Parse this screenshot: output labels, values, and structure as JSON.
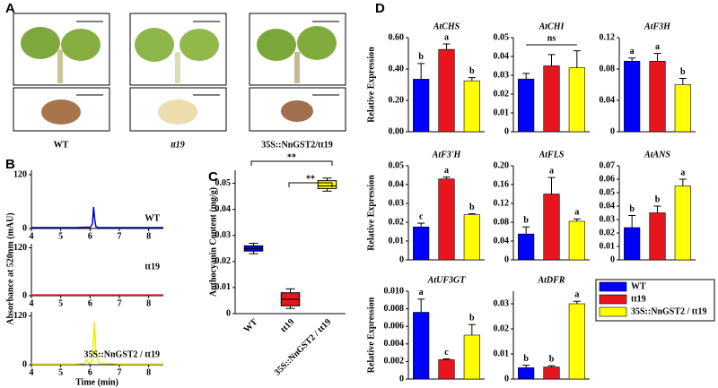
{
  "panels": [
    "A",
    "B",
    "C",
    "D"
  ],
  "photos": {
    "captions": [
      "WT",
      "tt19",
      "35S::NnGST2/tt19"
    ]
  },
  "legend": [
    {
      "name": "WT",
      "color": "#0000ff"
    },
    {
      "name": "tt19",
      "color": "#e8141e"
    },
    {
      "name": "35S::NnGST2 / tt19",
      "color": "#ffff00"
    }
  ],
  "chart_data": [
    {
      "type": "line",
      "ylabel": "Absorbance at 520nm (mAU)",
      "xlim": [
        4,
        8.5
      ],
      "ylim": [
        0,
        130
      ],
      "xticks": [
        4,
        5,
        6,
        7,
        8
      ],
      "yticks": [
        0,
        120
      ],
      "x": [
        4,
        5,
        5.5,
        5.9,
        6.0,
        6.08,
        6.12,
        6.16,
        6.2,
        6.3,
        7,
        8,
        8.5
      ],
      "series": [
        {
          "name": "WT",
          "color": "#0000cc",
          "values": [
            2,
            2,
            2,
            3,
            2,
            10,
            48,
            20,
            4,
            2,
            2,
            2,
            2
          ]
        }
      ]
    },
    {
      "type": "line",
      "xlim": [
        4,
        8.5
      ],
      "ylim": [
        0,
        130
      ],
      "xticks": [
        4,
        5,
        6,
        7,
        8
      ],
      "yticks": [
        0,
        120
      ],
      "x": [
        4,
        5,
        6,
        7,
        8,
        8.5
      ],
      "series": [
        {
          "name": "tt19",
          "color": "#e8141e",
          "values": [
            2,
            2,
            2,
            2,
            2,
            2
          ]
        }
      ]
    },
    {
      "type": "line",
      "xlabel": "Time (min)",
      "xlim": [
        4,
        8.5
      ],
      "ylim": [
        0,
        130
      ],
      "xticks": [
        4,
        5,
        6,
        7,
        8
      ],
      "yticks": [
        0,
        120
      ],
      "x": [
        4,
        5,
        5.5,
        5.8,
        5.88,
        5.95,
        6.05,
        6.1,
        6.15,
        6.2,
        6.3,
        7,
        8,
        8.5
      ],
      "series": [
        {
          "name": "35S::NnGST2 / tt19",
          "color": "#eeee00",
          "values": [
            2,
            2,
            2,
            3,
            12,
            3,
            5,
            40,
            105,
            30,
            4,
            2,
            2,
            2
          ]
        }
      ]
    },
    {
      "type": "box",
      "ylabel": "Anthocyanin Content (mg/g)",
      "ylim": [
        0,
        0.055
      ],
      "yticks": [
        0,
        0.01,
        0.02,
        0.03,
        0.04,
        0.05
      ],
      "categories": [
        "WT",
        "tt19",
        "35S::NnGST2 / tt19"
      ],
      "boxes": [
        {
          "min": 0.023,
          "q1": 0.024,
          "median": 0.025,
          "q3": 0.026,
          "max": 0.027,
          "color": "#0000ff"
        },
        {
          "min": 0.002,
          "q1": 0.003,
          "median": 0.0055,
          "q3": 0.008,
          "max": 0.0095,
          "color": "#e8141e"
        },
        {
          "min": 0.047,
          "q1": 0.048,
          "median": 0.049,
          "q3": 0.051,
          "max": 0.052,
          "color": "#ffff00"
        }
      ],
      "annotations": [
        "**",
        "**"
      ]
    },
    {
      "type": "bar",
      "title": "AtCHS",
      "ylabel": "Relative Expression",
      "ylim": [
        0,
        0.6
      ],
      "yticks": [
        {
          "value": 0,
          "label": "0.00"
        },
        {
          "value": 0.2,
          "label": "0.20"
        },
        {
          "value": 0.4,
          "label": "0.40"
        },
        {
          "value": 0.6,
          "label": "0.60"
        }
      ],
      "values": [
        0.335,
        0.525,
        0.325
      ],
      "errors": [
        0.1,
        0.035,
        0.02
      ],
      "letters": [
        "b",
        "a",
        "b"
      ]
    },
    {
      "type": "bar",
      "title": "AtCHI",
      "ylim": [
        0,
        0.05
      ],
      "yticks": [
        0,
        0.01,
        0.02,
        0.03,
        0.04,
        0.05
      ],
      "values": [
        0.028,
        0.035,
        0.034
      ],
      "errors": [
        0.003,
        0.006,
        0.009
      ],
      "annotation": "ns"
    },
    {
      "type": "bar",
      "title": "AtF3H",
      "ylim": [
        0,
        0.12
      ],
      "yticks": [
        0,
        0.04,
        0.08,
        0.12
      ],
      "values": [
        0.09,
        0.09,
        0.06
      ],
      "errors": [
        0.004,
        0.01,
        0.008
      ],
      "letters": [
        "a",
        "a",
        "b"
      ]
    },
    {
      "type": "bar",
      "title": "AtF3'H",
      "ylabel": "Relative Expression",
      "ylim": [
        0,
        0.05
      ],
      "yticks": [
        0,
        0.01,
        0.02,
        0.03,
        0.04,
        0.05
      ],
      "values": [
        0.0175,
        0.043,
        0.024
      ],
      "errors": [
        0.002,
        0.001,
        0.0005
      ],
      "letters": [
        "c",
        "a",
        "b"
      ]
    },
    {
      "type": "bar",
      "title": "AtFLS",
      "ylim": [
        0,
        0.2
      ],
      "yticks": [
        0,
        0.04,
        0.08,
        0.12,
        0.16,
        {
          "value": 0.2,
          "label": "0.20"
        }
      ],
      "values": [
        0.055,
        0.14,
        0.082
      ],
      "errors": [
        0.015,
        0.035,
        0.005
      ],
      "letters": [
        "b",
        "a",
        "a"
      ]
    },
    {
      "type": "bar",
      "title": "AtANS",
      "ylim": [
        0,
        0.07
      ],
      "yticks": [
        0,
        0.01,
        0.02,
        0.03,
        0.04,
        0.05,
        0.06,
        0.07
      ],
      "values": [
        0.024,
        0.035,
        0.055
      ],
      "errors": [
        0.009,
        0.005,
        0.005
      ],
      "letters": [
        "b",
        "b",
        "a"
      ]
    },
    {
      "type": "bar",
      "title": "AtUF3GT",
      "ylabel": "Relative Expression",
      "ylim": [
        0,
        0.01
      ],
      "yticks": [
        0,
        0.002,
        0.004,
        0.006,
        0.008,
        {
          "value": 0.01,
          "label": "0.010"
        }
      ],
      "values": [
        0.0076,
        0.0022,
        0.005
      ],
      "errors": [
        0.0015,
        0.0001,
        0.0012
      ],
      "letters": [
        "a",
        "c",
        "b"
      ]
    },
    {
      "type": "bar",
      "title": "AtDFR",
      "ylim": [
        0,
        0.035
      ],
      "yticks": [
        0,
        0.01,
        0.02,
        0.03
      ],
      "values": [
        0.0045,
        0.0048,
        0.03
      ],
      "errors": [
        0.001,
        0.0005,
        0.001
      ],
      "letters": [
        "b",
        "b",
        "a"
      ]
    }
  ]
}
